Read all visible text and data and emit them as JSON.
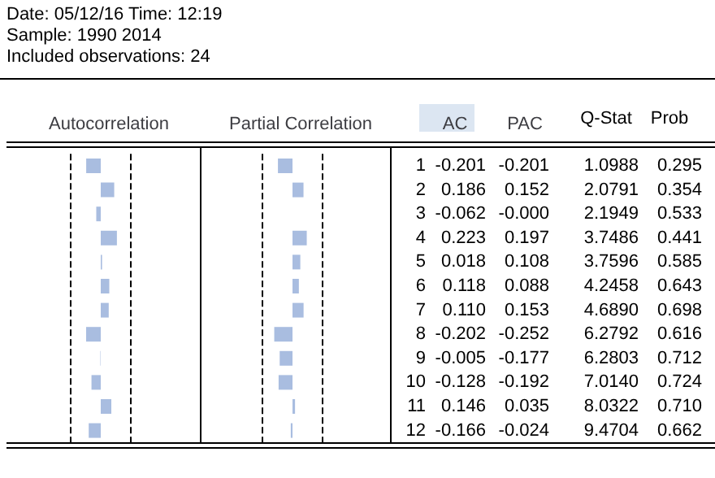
{
  "chart_data": [
    {
      "type": "bar",
      "orientation": "horizontal",
      "title": "Autocorrelation",
      "annotations": [
        "Date: 05/12/16   Time: 12:19",
        "Sample: 1990 2014",
        "Included observations: 24"
      ],
      "categories": [
        "1",
        "2",
        "3",
        "4",
        "5",
        "6",
        "7",
        "8",
        "9",
        "10",
        "11",
        "12"
      ],
      "series": [
        {
          "name": "AC",
          "color": "#a9bde0",
          "values": [
            -0.201,
            0.186,
            -0.062,
            0.223,
            0.018,
            0.118,
            0.11,
            -0.202,
            -0.005,
            -0.128,
            0.146,
            -0.166
          ],
          "value_labels": [
            "-0.201",
            "0.186",
            "-0.062",
            "0.223",
            "0.018",
            "0.118",
            "0.110",
            "-0.202",
            "-0.005",
            "-0.128",
            "0.146",
            "-0.166"
          ]
        }
      ],
      "ref_lines": [
        {
          "axis": "x",
          "value": -0.408,
          "line_style": "dashed"
        },
        {
          "axis": "x",
          "value": 0.408,
          "line_style": "dashed"
        }
      ]
    },
    {
      "type": "bar",
      "orientation": "horizontal",
      "title": "Partial Correlation",
      "categories": [
        "1",
        "2",
        "3",
        "4",
        "5",
        "6",
        "7",
        "8",
        "9",
        "10",
        "11",
        "12"
      ],
      "tick_labels": false,
      "series": [
        {
          "name": "PAC",
          "color": "#a9bde0",
          "values": [
            -0.201,
            0.152,
            -0.0,
            0.197,
            0.108,
            0.088,
            0.153,
            -0.252,
            -0.177,
            -0.192,
            0.035,
            -0.024
          ],
          "value_labels": [
            "-0.201",
            "0.152",
            "-0.000",
            "0.197",
            "0.108",
            "0.088",
            "0.153",
            "-0.252",
            "-0.177",
            "-0.192",
            "0.035",
            "-0.024"
          ]
        }
      ],
      "ref_lines": [
        {
          "axis": "x",
          "value": -0.408,
          "line_style": "dashed"
        },
        {
          "axis": "x",
          "value": 0.408,
          "line_style": "dashed"
        }
      ]
    },
    {
      "type": "other",
      "annotations": [
        "Q-Stat",
        "Prob",
        "1.0988",
        "0.295",
        "2.0791",
        "0.354",
        "2.1949",
        "0.533",
        "3.7486",
        "0.441",
        "3.7596",
        "0.585",
        "4.2458",
        "0.643",
        "4.6890",
        "0.698",
        "6.2792",
        "0.616",
        "6.2803",
        "0.712",
        "7.0140",
        "0.724",
        "8.0322",
        "0.710",
        "9.4704",
        "0.662"
      ]
    }
  ]
}
